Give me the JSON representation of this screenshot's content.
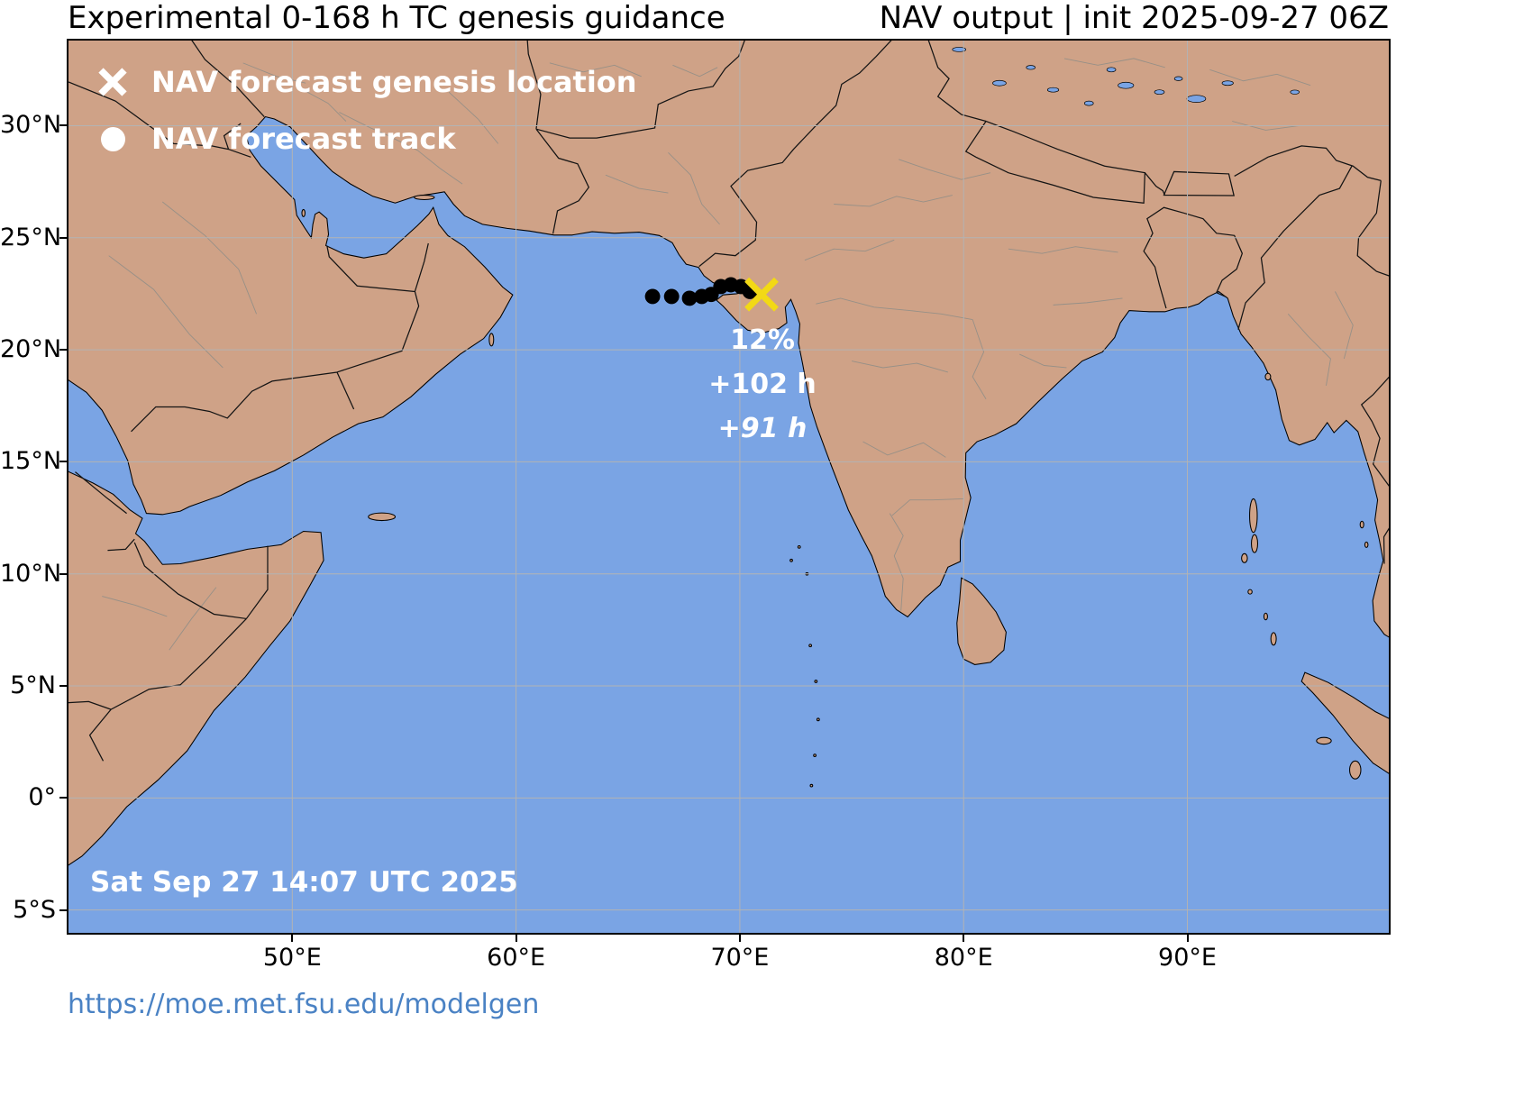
{
  "header": {
    "title_left": "Experimental 0-168 h TC genesis guidance",
    "title_right": "NAV output | init 2025-09-27 06Z"
  },
  "legend": {
    "genesis_label": "NAV forecast genesis location",
    "track_label": "NAV forecast track"
  },
  "annotations": {
    "probability": "12%",
    "genesis_lead_time": "+102 h",
    "track_time": "+91 h"
  },
  "map_status": {
    "valid_time": "Sat Sep 27 14:07 UTC 2025"
  },
  "footer": {
    "url": "https://moe.met.fsu.edu/modelgen"
  },
  "axes": {
    "extent": {
      "lon_min": 40,
      "lon_max": 99,
      "lat_min": -6.02,
      "lat_max": 33.8
    },
    "lat_ticks": [
      {
        "label": "30°N",
        "lat": 30
      },
      {
        "label": "25°N",
        "lat": 25
      },
      {
        "label": "20°N",
        "lat": 20
      },
      {
        "label": "15°N",
        "lat": 15
      },
      {
        "label": "10°N",
        "lat": 10
      },
      {
        "label": "5°N",
        "lat": 5
      },
      {
        "label": "0°",
        "lat": 0
      },
      {
        "label": "5°S",
        "lat": -5
      }
    ],
    "lon_ticks": [
      {
        "label": "50°E",
        "lon": 50
      },
      {
        "label": "60°E",
        "lon": 60
      },
      {
        "label": "70°E",
        "lon": 70
      },
      {
        "label": "80°E",
        "lon": 80
      },
      {
        "label": "90°E",
        "lon": 90
      }
    ]
  },
  "map_markers": {
    "genesis": {
      "lon": 70.97,
      "lat": 22.47
    },
    "track": [
      [
        66.1,
        22.38
      ],
      [
        66.95,
        22.38
      ],
      [
        67.75,
        22.3
      ],
      [
        68.3,
        22.38
      ],
      [
        68.72,
        22.47
      ],
      [
        69.15,
        22.82
      ],
      [
        69.6,
        22.9
      ],
      [
        70.05,
        22.82
      ],
      [
        70.45,
        22.6
      ]
    ]
  },
  "colors": {
    "ocean": "#7aa4e4",
    "land": "#cfa287",
    "grid": "#b3b3b3",
    "genesis_marker": "#f2d915",
    "track_marker": "#000000",
    "link": "#4a82c4"
  }
}
